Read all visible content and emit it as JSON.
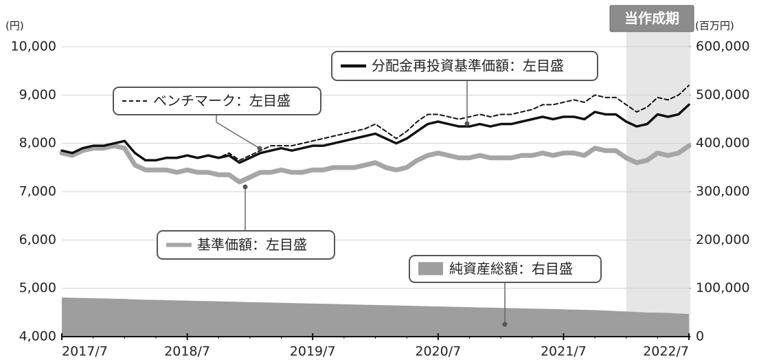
{
  "chart_data": {
    "type": "line",
    "y_unit_label": "(円)",
    "y2_unit_label": "(百万円)",
    "x": [
      "2017/7",
      "2017/8",
      "2017/9",
      "2017/10",
      "2017/11",
      "2017/12",
      "2018/1",
      "2018/2",
      "2018/3",
      "2018/4",
      "2018/5",
      "2018/6",
      "2018/7",
      "2018/8",
      "2018/9",
      "2018/10",
      "2018/11",
      "2018/12",
      "2019/1",
      "2019/2",
      "2019/3",
      "2019/4",
      "2019/5",
      "2019/6",
      "2019/7",
      "2019/8",
      "2019/9",
      "2019/10",
      "2019/11",
      "2019/12",
      "2020/1",
      "2020/2",
      "2020/3",
      "2020/4",
      "2020/5",
      "2020/6",
      "2020/7",
      "2020/8",
      "2020/9",
      "2020/10",
      "2020/11",
      "2020/12",
      "2021/1",
      "2021/2",
      "2021/3",
      "2021/4",
      "2021/5",
      "2021/6",
      "2021/7",
      "2021/8",
      "2021/9",
      "2021/10",
      "2021/11",
      "2021/12",
      "2022/1",
      "2022/2",
      "2022/3",
      "2022/4",
      "2022/5",
      "2022/6",
      "2022/7"
    ],
    "xticks": [
      "2017/7",
      "2018/7",
      "2019/7",
      "2020/7",
      "2021/7",
      "2022/7"
    ],
    "ylim": [
      4000,
      10000
    ],
    "yticks": [
      {
        "value": 4000,
        "label": "4,000"
      },
      {
        "value": 5000,
        "label": "5,000"
      },
      {
        "value": 6000,
        "label": "6,000"
      },
      {
        "value": 7000,
        "label": "7,000"
      },
      {
        "value": 8000,
        "label": "8,000"
      },
      {
        "value": 9000,
        "label": "9,000"
      },
      {
        "value": 10000,
        "label": "10,000"
      }
    ],
    "y2lim": [
      0,
      600000
    ],
    "y2ticks": [
      0,
      {
        "value": 100000,
        "label": "100,000"
      },
      {
        "value": 200000,
        "label": "200,000"
      },
      {
        "value": 300000,
        "label": "300,000"
      },
      {
        "value": 400000,
        "label": "400,000"
      },
      {
        "value": 500000,
        "label": "500,000"
      },
      {
        "value": 600000,
        "label": "600,000"
      }
    ],
    "grid": true,
    "period": {
      "label": "当作成期",
      "start": "2022/1",
      "end": "2022/7"
    },
    "series": [
      {
        "name": "純資産総額：右目盛",
        "color": "#9e9e9e",
        "axis": "y2",
        "kind": "area",
        "values": [
          81000,
          80500,
          80000,
          79500,
          79000,
          78500,
          78000,
          77000,
          76500,
          76000,
          75500,
          75000,
          74500,
          74000,
          73500,
          73000,
          72500,
          72000,
          71500,
          71000,
          70500,
          70000,
          69500,
          69000,
          68500,
          68000,
          67500,
          67000,
          66500,
          66000,
          65500,
          65000,
          64500,
          64000,
          63500,
          63000,
          62500,
          62000,
          61500,
          61000,
          60500,
          60000,
          59500,
          59000,
          58500,
          58000,
          57500,
          57000,
          56500,
          56000,
          55500,
          55000,
          54000,
          53000,
          52000,
          51000,
          50000,
          49500,
          49000,
          48000,
          47000
        ]
      },
      {
        "name": "基準価額：左目盛",
        "color": "#a6a6a6",
        "axis": "y",
        "kind": "line",
        "width": 7,
        "values": [
          7800,
          7750,
          7850,
          7900,
          7900,
          7950,
          7900,
          7550,
          7450,
          7450,
          7450,
          7400,
          7450,
          7400,
          7400,
          7350,
          7350,
          7200,
          7300,
          7400,
          7400,
          7450,
          7400,
          7400,
          7450,
          7450,
          7500,
          7500,
          7500,
          7550,
          7600,
          7500,
          7450,
          7500,
          7650,
          7750,
          7800,
          7750,
          7700,
          7700,
          7750,
          7700,
          7700,
          7700,
          7750,
          7750,
          7800,
          7750,
          7800,
          7800,
          7750,
          7900,
          7850,
          7850,
          7700,
          7600,
          7650,
          7800,
          7750,
          7800,
          7950
        ]
      },
      {
        "name": "ベンチマーク：左目盛",
        "color": "#111111",
        "axis": "y",
        "kind": "line",
        "width": 2,
        "dashed": true,
        "values": [
          7850,
          7800,
          7900,
          7950,
          7950,
          8000,
          8050,
          7800,
          7650,
          7650,
          7700,
          7700,
          7750,
          7700,
          7750,
          7700,
          7800,
          7650,
          7750,
          7850,
          7950,
          7950,
          7950,
          8000,
          8050,
          8100,
          8150,
          8200,
          8250,
          8300,
          8400,
          8250,
          8100,
          8250,
          8450,
          8600,
          8600,
          8550,
          8500,
          8550,
          8600,
          8550,
          8600,
          8600,
          8650,
          8700,
          8800,
          8800,
          8850,
          8900,
          8850,
          9000,
          8950,
          8950,
          8800,
          8650,
          8750,
          8950,
          8900,
          9000,
          9200
        ]
      },
      {
        "name": "分配金再投資基準価額：左目盛",
        "color": "#111111",
        "axis": "y",
        "kind": "line",
        "width": 3.5,
        "values": [
          7850,
          7800,
          7900,
          7950,
          7950,
          8000,
          8050,
          7800,
          7650,
          7650,
          7700,
          7700,
          7750,
          7700,
          7750,
          7700,
          7750,
          7600,
          7700,
          7800,
          7850,
          7900,
          7850,
          7900,
          7950,
          7950,
          8000,
          8050,
          8100,
          8150,
          8200,
          8100,
          8000,
          8100,
          8250,
          8400,
          8450,
          8400,
          8350,
          8350,
          8400,
          8350,
          8400,
          8400,
          8450,
          8500,
          8550,
          8500,
          8550,
          8550,
          8500,
          8650,
          8600,
          8600,
          8450,
          8350,
          8400,
          8600,
          8550,
          8600,
          8800
        ]
      }
    ]
  }
}
